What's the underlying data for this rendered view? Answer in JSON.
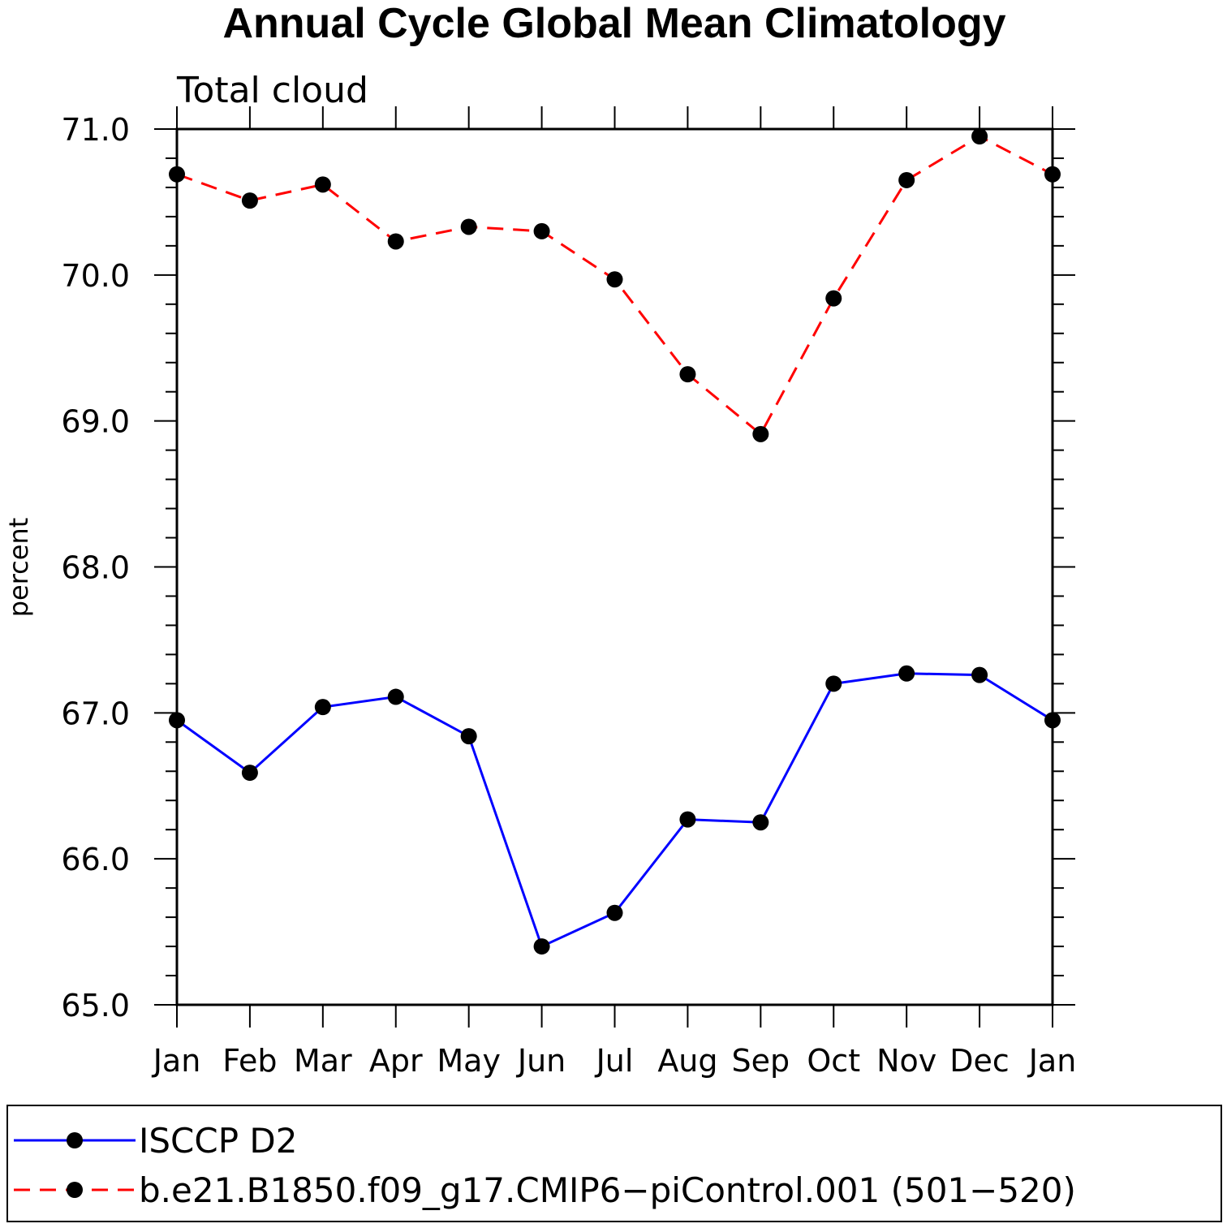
{
  "chart_data": {
    "type": "line",
    "title": "Annual Cycle Global Mean Climatology",
    "subtitle": "Total cloud",
    "ylabel": "percent",
    "xlabel": "",
    "categories": [
      "Jan",
      "Feb",
      "Mar",
      "Apr",
      "May",
      "Jun",
      "Jul",
      "Aug",
      "Sep",
      "Oct",
      "Nov",
      "Dec",
      "Jan"
    ],
    "ylim": [
      65.0,
      71.0
    ],
    "yticks": [
      "65.0",
      "66.0",
      "67.0",
      "68.0",
      "69.0",
      "70.0",
      "71.0"
    ],
    "legend_position": "bottom",
    "series": [
      {
        "name": "ISCCP D2",
        "color": "#0000ff",
        "dash": "solid",
        "marker": "filled-circle",
        "values": [
          66.95,
          66.59,
          67.04,
          67.11,
          66.84,
          65.4,
          65.63,
          66.27,
          66.25,
          67.2,
          67.27,
          67.26,
          66.95
        ]
      },
      {
        "name": "b.e21.B1850.f09_g17.CMIP6−piControl.001 (501−520)",
        "color": "#ff0000",
        "dash": "dashed",
        "marker": "filled-circle",
        "values": [
          70.69,
          70.51,
          70.62,
          70.23,
          70.33,
          70.3,
          69.97,
          69.32,
          68.91,
          69.84,
          70.65,
          70.95,
          70.69
        ]
      }
    ]
  }
}
